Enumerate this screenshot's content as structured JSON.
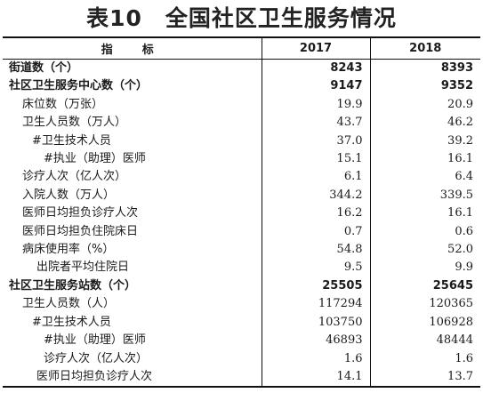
{
  "title": "表10　全国社区卫生服务情况",
  "header": {
    "label": "指　标",
    "col1": "2017",
    "col2": "2018"
  },
  "rows": [
    {
      "label": "街道数（个）",
      "v2017": "8243",
      "v2018": "8393",
      "bold": true,
      "indent": 0
    },
    {
      "label": "社区卫生服务中心数（个）",
      "v2017": "9147",
      "v2018": "9352",
      "bold": true,
      "indent": 0
    },
    {
      "label": "床位数（万张）",
      "v2017": "19.9",
      "v2018": "20.9",
      "bold": false,
      "indent": 1
    },
    {
      "label": "卫生人员数（万人）",
      "v2017": "43.7",
      "v2018": "46.2",
      "bold": false,
      "indent": 1
    },
    {
      "label": "#卫生技术人员",
      "v2017": "37.0",
      "v2018": "39.2",
      "bold": false,
      "indent": 2
    },
    {
      "label": "#执业（助理）医师",
      "v2017": "15.1",
      "v2018": "16.1",
      "bold": false,
      "indent": 3
    },
    {
      "label": "诊疗人次（亿人次）",
      "v2017": "6.1",
      "v2018": "6.4",
      "bold": false,
      "indent": 1
    },
    {
      "label": "入院人数（万人）",
      "v2017": "344.2",
      "v2018": "339.5",
      "bold": false,
      "indent": 1
    },
    {
      "label": "医师日均担负诊疗人次",
      "v2017": "16.2",
      "v2018": "16.1",
      "bold": false,
      "indent": 1
    },
    {
      "label": "医师日均担负住院床日",
      "v2017": "0.7",
      "v2018": "0.6",
      "bold": false,
      "indent": 1
    },
    {
      "label": "病床使用率（%）",
      "v2017": "54.8",
      "v2018": "52.0",
      "bold": false,
      "indent": 1
    },
    {
      "label": "出院者平均住院日",
      "v2017": "9.5",
      "v2018": "9.9",
      "bold": false,
      "indent": 4
    },
    {
      "label": "社区卫生服务站数（个）",
      "v2017": "25505",
      "v2018": "25645",
      "bold": true,
      "indent": 0
    },
    {
      "label": "卫生人员数（人）",
      "v2017": "117294",
      "v2018": "120365",
      "bold": false,
      "indent": 1
    },
    {
      "label": "#卫生技术人员",
      "v2017": "103750",
      "v2018": "106928",
      "bold": false,
      "indent": 2
    },
    {
      "label": "#执业（助理）医师",
      "v2017": "46893",
      "v2018": "48444",
      "bold": false,
      "indent": 3
    },
    {
      "label": "诊疗人次（亿人次）",
      "v2017": "1.6",
      "v2018": "1.6",
      "bold": false,
      "indent": 3
    },
    {
      "label": "医师日均担负诊疗人次",
      "v2017": "14.1",
      "v2018": "13.7",
      "bold": false,
      "indent": 4
    }
  ]
}
